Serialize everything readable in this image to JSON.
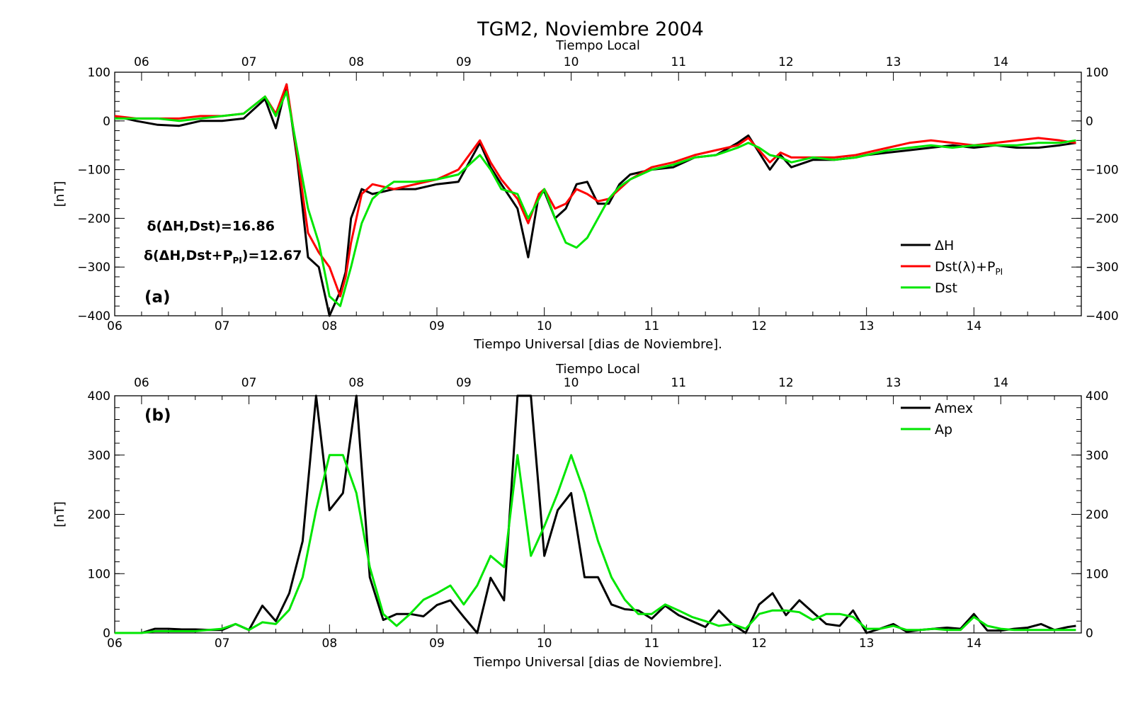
{
  "figure": {
    "title": "TGM2, Noviembre 2004"
  },
  "chart_data": [
    {
      "type": "line",
      "panel_label": "(a)",
      "xlabel": "Tiempo Universal [dias de Noviembre].",
      "top_xlabel": "Tiempo Local",
      "ylabel": "[nT]",
      "xlim": [
        6,
        15
      ],
      "ylim": [
        -400,
        100
      ],
      "x_ticks": [
        6,
        7,
        8,
        9,
        10,
        11,
        12,
        13,
        14
      ],
      "x_tick_labels": [
        "06",
        "07",
        "08",
        "09",
        "10",
        "11",
        "12",
        "13",
        "14"
      ],
      "top_x_ticks": [
        6.25,
        7.25,
        8.25,
        9.25,
        10.25,
        11.25,
        12.25,
        13.25,
        14.25
      ],
      "top_x_tick_labels": [
        "06",
        "07",
        "08",
        "09",
        "10",
        "11",
        "12",
        "13",
        "14"
      ],
      "y_ticks": [
        -400,
        -300,
        -200,
        -100,
        0,
        100
      ],
      "y_tick_labels": [
        "−400",
        "−300",
        "−200",
        "−100",
        "0",
        "100"
      ],
      "right_y_tick_labels": [
        "−400",
        "−300",
        "−200",
        "−100",
        "0",
        "100"
      ],
      "legend_position": "right",
      "annotations": [
        {
          "text": "δ(ΔH,Dst)=16.86",
          "x": 6.3,
          "y": -225
        },
        {
          "text": "δ(ΔH,Dst+P",
          "sub": "PI",
          "tail": ")=12.67",
          "x": 6.27,
          "y": -285
        }
      ],
      "series": [
        {
          "name": "ΔH",
          "color": "#000000",
          "x": [
            6.0,
            6.2,
            6.4,
            6.6,
            6.8,
            7.0,
            7.2,
            7.4,
            7.5,
            7.6,
            7.7,
            7.8,
            7.9,
            8.0,
            8.1,
            8.15,
            8.2,
            8.3,
            8.4,
            8.5,
            8.6,
            8.8,
            9.0,
            9.2,
            9.4,
            9.5,
            9.6,
            9.75,
            9.85,
            9.95,
            10.0,
            10.1,
            10.2,
            10.3,
            10.4,
            10.5,
            10.6,
            10.7,
            10.8,
            11.0,
            11.2,
            11.4,
            11.6,
            11.8,
            11.9,
            12.0,
            12.1,
            12.2,
            12.3,
            12.5,
            12.7,
            12.9,
            13.0,
            13.2,
            13.4,
            13.6,
            13.8,
            14.0,
            14.2,
            14.4,
            14.6,
            14.8,
            14.95
          ],
          "y": [
            10,
            0,
            -8,
            -10,
            0,
            0,
            5,
            45,
            -15,
            75,
            -80,
            -280,
            -300,
            -400,
            -350,
            -310,
            -200,
            -140,
            -150,
            -145,
            -140,
            -140,
            -130,
            -125,
            -45,
            -95,
            -130,
            -180,
            -280,
            -150,
            -145,
            -200,
            -180,
            -130,
            -125,
            -170,
            -170,
            -130,
            -110,
            -100,
            -95,
            -75,
            -70,
            -45,
            -30,
            -65,
            -100,
            -70,
            -95,
            -80,
            -80,
            -75,
            -70,
            -65,
            -60,
            -55,
            -50,
            -55,
            -50,
            -55,
            -55,
            -50,
            -45
          ]
        },
        {
          "name": "Dst(λ)+P",
          "name_sub": "PI",
          "color": "#ff0000",
          "x": [
            6.0,
            6.2,
            6.4,
            6.6,
            6.8,
            7.0,
            7.2,
            7.4,
            7.5,
            7.6,
            7.7,
            7.8,
            7.9,
            8.0,
            8.1,
            8.15,
            8.2,
            8.3,
            8.4,
            8.5,
            8.6,
            8.8,
            9.0,
            9.2,
            9.4,
            9.5,
            9.6,
            9.75,
            9.85,
            9.95,
            10.0,
            10.1,
            10.2,
            10.3,
            10.4,
            10.5,
            10.6,
            10.7,
            10.8,
            11.0,
            11.2,
            11.4,
            11.6,
            11.8,
            11.9,
            12.0,
            12.1,
            12.2,
            12.3,
            12.5,
            12.7,
            12.9,
            13.0,
            13.2,
            13.4,
            13.6,
            13.8,
            14.0,
            14.2,
            14.4,
            14.6,
            14.8,
            14.95
          ],
          "y": [
            10,
            5,
            5,
            5,
            10,
            10,
            15,
            50,
            15,
            75,
            -70,
            -230,
            -270,
            -300,
            -360,
            -320,
            -250,
            -150,
            -130,
            -135,
            -140,
            -130,
            -120,
            -100,
            -40,
            -85,
            -120,
            -160,
            -210,
            -150,
            -140,
            -180,
            -170,
            -140,
            -150,
            -165,
            -160,
            -140,
            -120,
            -95,
            -85,
            -70,
            -60,
            -50,
            -35,
            -60,
            -85,
            -65,
            -75,
            -75,
            -75,
            -70,
            -65,
            -55,
            -45,
            -40,
            -45,
            -50,
            -45,
            -40,
            -35,
            -40,
            -45
          ]
        },
        {
          "name": "Dst",
          "color": "#00e600",
          "x": [
            6.0,
            6.2,
            6.4,
            6.6,
            6.8,
            7.0,
            7.2,
            7.4,
            7.5,
            7.6,
            7.7,
            7.8,
            7.9,
            8.0,
            8.1,
            8.15,
            8.2,
            8.3,
            8.4,
            8.5,
            8.6,
            8.8,
            9.0,
            9.2,
            9.4,
            9.5,
            9.6,
            9.75,
            9.85,
            9.95,
            10.0,
            10.1,
            10.2,
            10.3,
            10.4,
            10.5,
            10.6,
            10.7,
            10.8,
            11.0,
            11.2,
            11.4,
            11.6,
            11.8,
            11.9,
            12.0,
            12.1,
            12.2,
            12.3,
            12.5,
            12.7,
            12.9,
            13.0,
            13.2,
            13.4,
            13.6,
            13.8,
            14.0,
            14.2,
            14.4,
            14.6,
            14.8,
            14.95
          ],
          "y": [
            5,
            5,
            5,
            0,
            5,
            10,
            15,
            50,
            10,
            60,
            -60,
            -180,
            -250,
            -360,
            -380,
            -340,
            -300,
            -210,
            -160,
            -140,
            -125,
            -125,
            -120,
            -110,
            -70,
            -100,
            -140,
            -150,
            -200,
            -160,
            -140,
            -200,
            -250,
            -260,
            -240,
            -200,
            -160,
            -135,
            -120,
            -100,
            -90,
            -75,
            -70,
            -55,
            -45,
            -55,
            -70,
            -75,
            -85,
            -75,
            -80,
            -75,
            -70,
            -60,
            -55,
            -50,
            -55,
            -50,
            -50,
            -50,
            -45,
            -45,
            -40
          ]
        }
      ]
    },
    {
      "type": "line",
      "panel_label": "(b)",
      "xlabel": "Tiempo Universal [dias de Noviembre].",
      "top_xlabel": "Tiempo Local",
      "ylabel": "[nT]",
      "xlim": [
        6,
        15
      ],
      "ylim": [
        0,
        400
      ],
      "x_ticks": [
        6,
        7,
        8,
        9,
        10,
        11,
        12,
        13,
        14
      ],
      "x_tick_labels": [
        "06",
        "07",
        "08",
        "09",
        "10",
        "11",
        "12",
        "13",
        "14"
      ],
      "top_x_ticks": [
        6.25,
        7.25,
        8.25,
        9.25,
        10.25,
        11.25,
        12.25,
        13.25,
        14.25
      ],
      "top_x_tick_labels": [
        "06",
        "07",
        "08",
        "09",
        "10",
        "11",
        "12",
        "13",
        "14"
      ],
      "y_ticks": [
        0,
        100,
        200,
        300,
        400
      ],
      "y_tick_labels": [
        "0",
        "100",
        "200",
        "300",
        "400"
      ],
      "right_y_tick_labels": [
        "0",
        "100",
        "200",
        "300",
        "400"
      ],
      "legend_position": "top-right",
      "series": [
        {
          "name": "Amex",
          "color": "#000000",
          "x": [
            6.0,
            6.25,
            6.375,
            6.5,
            6.625,
            6.75,
            6.875,
            7.0,
            7.125,
            7.25,
            7.375,
            7.5,
            7.625,
            7.75,
            7.875,
            8.0,
            8.125,
            8.25,
            8.375,
            8.5,
            8.625,
            8.75,
            8.875,
            9.0,
            9.125,
            9.25,
            9.375,
            9.5,
            9.625,
            9.75,
            9.875,
            10.0,
            10.125,
            10.25,
            10.375,
            10.5,
            10.625,
            10.75,
            10.875,
            11.0,
            11.125,
            11.25,
            11.375,
            11.5,
            11.625,
            11.75,
            11.875,
            12.0,
            12.125,
            12.25,
            12.375,
            12.5,
            12.625,
            12.75,
            12.875,
            13.0,
            13.125,
            13.25,
            13.375,
            13.5,
            13.625,
            13.75,
            13.875,
            14.0,
            14.125,
            14.25,
            14.375,
            14.5,
            14.625,
            14.75,
            14.875,
            14.95
          ],
          "y": [
            0,
            0,
            7,
            7,
            6,
            6,
            5,
            5,
            15,
            5,
            46,
            20,
            67,
            155,
            400,
            207,
            236,
            400,
            94,
            22,
            32,
            32,
            28,
            47,
            55,
            27,
            0,
            93,
            55,
            400,
            400,
            130,
            207,
            236,
            94,
            94,
            48,
            40,
            38,
            24,
            46,
            30,
            20,
            10,
            38,
            15,
            0,
            48,
            67,
            30,
            55,
            35,
            15,
            12,
            38,
            0,
            7,
            15,
            2,
            5,
            7,
            9,
            7,
            32,
            4,
            4,
            7,
            9,
            15,
            5,
            10,
            12
          ]
        },
        {
          "name": "Ap",
          "color": "#00e600",
          "x": [
            6.0,
            6.25,
            6.375,
            6.5,
            6.625,
            6.75,
            6.875,
            7.0,
            7.125,
            7.25,
            7.375,
            7.5,
            7.625,
            7.75,
            7.875,
            8.0,
            8.125,
            8.25,
            8.375,
            8.5,
            8.625,
            8.75,
            8.875,
            9.0,
            9.125,
            9.25,
            9.375,
            9.5,
            9.625,
            9.75,
            9.875,
            10.0,
            10.125,
            10.25,
            10.375,
            10.5,
            10.625,
            10.75,
            10.875,
            11.0,
            11.125,
            11.25,
            11.375,
            11.5,
            11.625,
            11.75,
            11.875,
            12.0,
            12.125,
            12.25,
            12.375,
            12.5,
            12.625,
            12.75,
            12.875,
            13.0,
            13.125,
            13.25,
            13.375,
            13.5,
            13.625,
            13.75,
            13.875,
            14.0,
            14.125,
            14.25,
            14.375,
            14.5,
            14.625,
            14.75,
            14.875,
            14.95
          ],
          "y": [
            0,
            0,
            3,
            3,
            3,
            3,
            5,
            7,
            15,
            5,
            18,
            15,
            39,
            94,
            207,
            300,
            300,
            236,
            111,
            32,
            12,
            32,
            56,
            67,
            80,
            48,
            80,
            130,
            111,
            300,
            130,
            180,
            236,
            300,
            236,
            155,
            94,
            56,
            32,
            32,
            48,
            38,
            27,
            20,
            12,
            15,
            7,
            32,
            38,
            38,
            35,
            22,
            32,
            32,
            27,
            7,
            7,
            12,
            5,
            5,
            7,
            5,
            5,
            27,
            12,
            7,
            5,
            5,
            5,
            5,
            5,
            5
          ]
        }
      ]
    }
  ]
}
